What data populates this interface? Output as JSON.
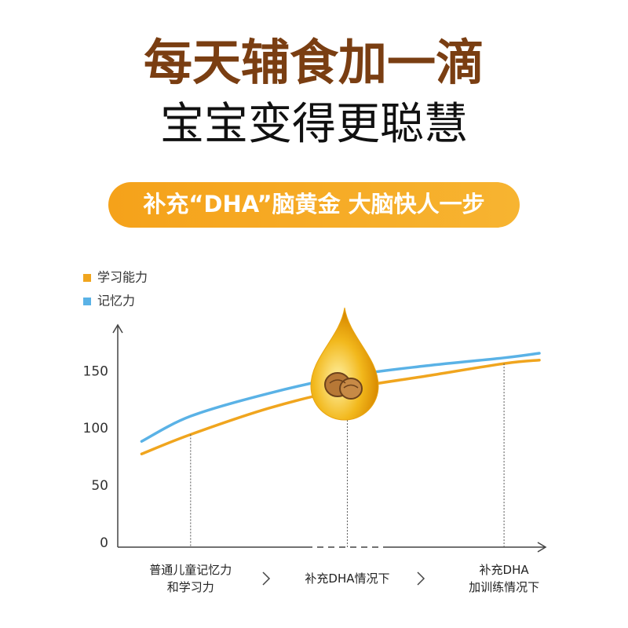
{
  "header": {
    "title": "每天辅食加一滴",
    "subtitle": "宝宝变得更聪慧",
    "banner": "补充“DHA”脑黄金 大脑快人一步"
  },
  "chart_data": {
    "type": "line",
    "x": [
      0.75,
      2,
      4,
      6,
      8,
      10,
      10.9
    ],
    "series": [
      {
        "name": "学习能力",
        "color": "#f0a51e",
        "values": [
          78,
          95,
          118,
          135,
          146,
          157,
          160
        ]
      },
      {
        "name": "记忆力",
        "color": "#5ab2e6",
        "values": [
          89,
          111,
          131,
          146,
          155,
          162,
          166
        ]
      }
    ],
    "xlim": [
      0,
      11
    ],
    "xticks": [
      {
        "value": 2,
        "label": "普通儿童记忆力\n和学习力"
      },
      {
        "value": 6,
        "label": "补充DHA情况下"
      },
      {
        "value": 10,
        "label": "补充DHA\n加训练情况下"
      }
    ],
    "ylim": [
      0,
      190
    ],
    "yticks": [
      0,
      50,
      100,
      150
    ],
    "legend": "top-left",
    "grid": false
  }
}
